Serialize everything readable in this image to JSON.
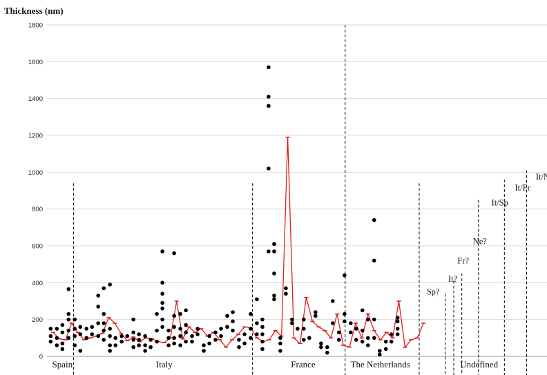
{
  "chart_data": {
    "type": "scatter",
    "ylabel": "Thickness (nm)",
    "ylim": [
      0,
      1800
    ],
    "yticks": [
      0,
      200,
      400,
      600,
      800,
      1000,
      1200,
      1400,
      1600,
      1800
    ],
    "grid": "horizontal",
    "colors": {
      "points": "#000000",
      "mean_line": "#e01b1b",
      "grid": "#d9d9d9",
      "divider": "#000000"
    },
    "groups": [
      {
        "label": "Spain",
        "x_center": 2.5
      },
      {
        "label": "Italy",
        "x_center": 19
      },
      {
        "label": "France",
        "x_center": 41.5
      },
      {
        "label": "The Netherlands",
        "x_center": 54
      },
      {
        "label": "Undefined",
        "x_center": 70
      }
    ],
    "dividers": [
      {
        "x": 4.3,
        "top": 940
      },
      {
        "x": 33.3,
        "top": 940
      },
      {
        "x": 48.3,
        "top": 1800
      },
      {
        "x": 60.3,
        "top": 940
      },
      {
        "x": 64.5,
        "top": 340
      },
      {
        "x": 65.9,
        "top": 410
      },
      {
        "x": 67.2,
        "top": 450
      },
      {
        "x": 69.9,
        "top": 850
      },
      {
        "x": 74.1,
        "top": 960
      },
      {
        "x": 77.7,
        "top": 1010
      }
    ],
    "annotations": [
      {
        "label": "Sp?",
        "x": 61.5,
        "y": 335
      },
      {
        "label": "It?",
        "x": 65.0,
        "y": 405
      },
      {
        "label": "Fr?",
        "x": 66.5,
        "y": 505
      },
      {
        "label": "Ne?",
        "x": 69.0,
        "y": 610
      },
      {
        "label": "It/Sp",
        "x": 72.0,
        "y": 820
      },
      {
        "label": "It/Fr",
        "x": 75.8,
        "y": 900
      },
      {
        "label": "It/Ne",
        "x": 79.2,
        "y": 960
      }
    ],
    "mean_line": [
      [
        1,
        130
      ],
      [
        2,
        95
      ],
      [
        3,
        90
      ],
      [
        4,
        180
      ],
      [
        5,
        130
      ],
      [
        6,
        90
      ],
      [
        7,
        100
      ],
      [
        8,
        110
      ],
      [
        9,
        125
      ],
      [
        10,
        210
      ],
      [
        11,
        180
      ],
      [
        12,
        125
      ],
      [
        13,
        85
      ],
      [
        14,
        105
      ],
      [
        15,
        80
      ],
      [
        16,
        100
      ],
      [
        17,
        95
      ],
      [
        18,
        80
      ],
      [
        19,
        75
      ],
      [
        20,
        100
      ],
      [
        21,
        300
      ],
      [
        22,
        95
      ],
      [
        23,
        160
      ],
      [
        24,
        130
      ],
      [
        25,
        150
      ],
      [
        26,
        110
      ],
      [
        27,
        130
      ],
      [
        28,
        90
      ],
      [
        29,
        50
      ],
      [
        30,
        90
      ],
      [
        31,
        120
      ],
      [
        32,
        160
      ],
      [
        33,
        155
      ],
      [
        34,
        100
      ],
      [
        35,
        80
      ],
      [
        36,
        90
      ],
      [
        37,
        140
      ],
      [
        38,
        110
      ],
      [
        39,
        1190
      ],
      [
        40,
        100
      ],
      [
        41,
        70
      ],
      [
        42,
        320
      ],
      [
        43,
        190
      ],
      [
        44,
        160
      ],
      [
        45,
        140
      ],
      [
        46,
        100
      ],
      [
        47,
        230
      ],
      [
        48,
        60
      ],
      [
        49,
        50
      ],
      [
        50,
        180
      ],
      [
        51,
        100
      ],
      [
        52,
        230
      ],
      [
        53,
        140
      ],
      [
        54,
        90
      ],
      [
        55,
        130
      ],
      [
        56,
        100
      ],
      [
        57,
        300
      ],
      [
        58,
        50
      ],
      [
        59,
        90
      ],
      [
        60,
        100
      ],
      [
        61,
        180
      ]
    ],
    "points": [
      [
        0.6,
        150
      ],
      [
        0.6,
        110
      ],
      [
        0.6,
        80
      ],
      [
        1.6,
        150
      ],
      [
        1.6,
        100
      ],
      [
        1.6,
        60
      ],
      [
        2.5,
        170
      ],
      [
        2.5,
        130
      ],
      [
        2.5,
        70
      ],
      [
        2.5,
        40
      ],
      [
        3.5,
        365
      ],
      [
        3.5,
        230
      ],
      [
        3.5,
        200
      ],
      [
        3.5,
        140
      ],
      [
        3.5,
        100
      ],
      [
        4.5,
        200
      ],
      [
        4.5,
        150
      ],
      [
        4.5,
        110
      ],
      [
        4.5,
        60
      ],
      [
        5.4,
        160
      ],
      [
        5.4,
        120
      ],
      [
        5.4,
        30
      ],
      [
        6.4,
        150
      ],
      [
        6.4,
        100
      ],
      [
        7.3,
        160
      ],
      [
        7.3,
        120
      ],
      [
        8.3,
        330
      ],
      [
        8.3,
        270
      ],
      [
        8.3,
        180
      ],
      [
        8.3,
        110
      ],
      [
        9.2,
        370
      ],
      [
        9.2,
        230
      ],
      [
        9.2,
        180
      ],
      [
        9.2,
        140
      ],
      [
        9.2,
        90
      ],
      [
        10.2,
        390
      ],
      [
        10.2,
        150
      ],
      [
        10.2,
        110
      ],
      [
        10.2,
        60
      ],
      [
        10.2,
        30
      ],
      [
        11.1,
        100
      ],
      [
        11.1,
        60
      ],
      [
        12.1,
        110
      ],
      [
        12.1,
        80
      ],
      [
        13.0,
        110
      ],
      [
        14.0,
        200
      ],
      [
        14.0,
        130
      ],
      [
        14.0,
        90
      ],
      [
        14.0,
        50
      ],
      [
        14.9,
        120
      ],
      [
        14.9,
        90
      ],
      [
        14.9,
        60
      ],
      [
        15.9,
        110
      ],
      [
        15.9,
        60
      ],
      [
        15.9,
        30
      ],
      [
        16.8,
        90
      ],
      [
        16.8,
        50
      ],
      [
        17.8,
        230
      ],
      [
        17.8,
        140
      ],
      [
        17.8,
        80
      ],
      [
        18.7,
        570
      ],
      [
        18.7,
        400
      ],
      [
        18.7,
        340
      ],
      [
        18.7,
        290
      ],
      [
        18.7,
        260
      ],
      [
        18.7,
        200
      ],
      [
        18.7,
        160
      ],
      [
        19.7,
        140
      ],
      [
        19.7,
        100
      ],
      [
        19.7,
        60
      ],
      [
        20.6,
        560
      ],
      [
        20.6,
        220
      ],
      [
        20.6,
        160
      ],
      [
        20.6,
        100
      ],
      [
        20.6,
        70
      ],
      [
        21.6,
        230
      ],
      [
        21.6,
        150
      ],
      [
        21.6,
        110
      ],
      [
        21.6,
        60
      ],
      [
        22.5,
        250
      ],
      [
        22.5,
        170
      ],
      [
        22.5,
        130
      ],
      [
        22.5,
        80
      ],
      [
        23.5,
        110
      ],
      [
        23.5,
        80
      ],
      [
        24.4,
        150
      ],
      [
        24.4,
        120
      ],
      [
        25.4,
        60
      ],
      [
        25.4,
        30
      ],
      [
        26.3,
        110
      ],
      [
        26.3,
        70
      ],
      [
        27.3,
        130
      ],
      [
        27.3,
        90
      ],
      [
        28.2,
        150
      ],
      [
        28.2,
        110
      ],
      [
        29.2,
        220
      ],
      [
        29.2,
        160
      ],
      [
        30.1,
        240
      ],
      [
        30.1,
        190
      ],
      [
        30.1,
        140
      ],
      [
        31.1,
        90
      ],
      [
        31.1,
        50
      ],
      [
        32.0,
        120
      ],
      [
        32.0,
        70
      ],
      [
        33.0,
        230
      ],
      [
        33.0,
        150
      ],
      [
        33.0,
        100
      ],
      [
        34.0,
        310
      ],
      [
        34.0,
        180
      ],
      [
        34.0,
        120
      ],
      [
        34.9,
        200
      ],
      [
        34.9,
        160
      ],
      [
        34.9,
        120
      ],
      [
        34.9,
        80
      ],
      [
        34.9,
        40
      ],
      [
        35.9,
        1570
      ],
      [
        35.9,
        1410
      ],
      [
        35.9,
        1360
      ],
      [
        35.9,
        1020
      ],
      [
        35.9,
        570
      ],
      [
        36.8,
        610
      ],
      [
        36.8,
        570
      ],
      [
        36.8,
        450
      ],
      [
        36.8,
        330
      ],
      [
        36.8,
        310
      ],
      [
        37.8,
        100
      ],
      [
        37.8,
        70
      ],
      [
        37.8,
        30
      ],
      [
        38.7,
        370
      ],
      [
        38.7,
        340
      ],
      [
        39.7,
        200
      ],
      [
        39.7,
        180
      ],
      [
        40.6,
        150
      ],
      [
        41.6,
        200
      ],
      [
        41.6,
        150
      ],
      [
        41.6,
        90
      ],
      [
        42.5,
        100
      ],
      [
        43.5,
        240
      ],
      [
        43.5,
        220
      ],
      [
        44.4,
        70
      ],
      [
        44.4,
        50
      ],
      [
        45.4,
        50
      ],
      [
        45.4,
        20
      ],
      [
        46.3,
        300
      ],
      [
        46.3,
        180
      ],
      [
        47.3,
        130
      ],
      [
        47.3,
        90
      ],
      [
        48.2,
        440
      ],
      [
        48.2,
        230
      ],
      [
        48.2,
        190
      ],
      [
        49.2,
        180
      ],
      [
        49.2,
        130
      ],
      [
        50.1,
        150
      ],
      [
        50.1,
        90
      ],
      [
        51.1,
        250
      ],
      [
        51.1,
        140
      ],
      [
        51.1,
        80
      ],
      [
        52.0,
        200
      ],
      [
        52.0,
        100
      ],
      [
        52.0,
        60
      ],
      [
        53.0,
        740
      ],
      [
        53.0,
        520
      ],
      [
        53.0,
        200
      ],
      [
        53.0,
        100
      ],
      [
        53.9,
        30
      ],
      [
        53.9,
        10
      ],
      [
        54.9,
        80
      ],
      [
        54.9,
        40
      ],
      [
        55.8,
        120
      ],
      [
        55.8,
        80
      ],
      [
        56.8,
        210
      ],
      [
        56.8,
        190
      ],
      [
        56.8,
        150
      ],
      [
        56.8,
        120
      ]
    ]
  }
}
